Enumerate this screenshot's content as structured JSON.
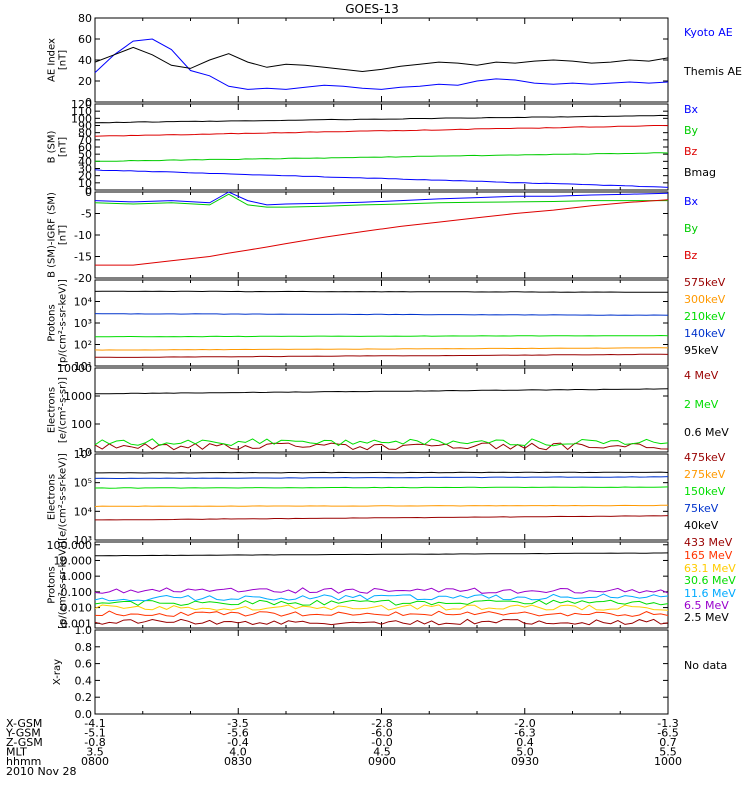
{
  "title": "GOES-13",
  "date_label": "2010 Nov 28",
  "ephemeris": {
    "rows": [
      {
        "label": "X-GSM",
        "values": [
          "-4.1",
          "-3.5",
          "-2.8",
          "-2.0",
          "-1.3"
        ]
      },
      {
        "label": "Y-GSM",
        "values": [
          "-5.1",
          "-5.6",
          "-6.0",
          "-6.3",
          "-6.5"
        ]
      },
      {
        "label": "Z-GSM",
        "values": [
          "-0.8",
          "-0.4",
          "-0.0",
          "0.4",
          "0.7"
        ]
      },
      {
        "label": "MLT",
        "values": [
          "3.5",
          "4.0",
          "4.5",
          "5.0",
          "5.5"
        ]
      },
      {
        "label": "hhmm",
        "values": [
          "0800",
          "0830",
          "0900",
          "0930",
          "1000"
        ]
      }
    ]
  },
  "chart_data": [
    {
      "type": "line",
      "ylabel": "AE Index\n[nT]",
      "ylim": [
        0,
        80
      ],
      "scale": "linear",
      "yticks": [
        0,
        20,
        40,
        60,
        80
      ],
      "ytick_labels": [
        "0",
        "20",
        "40",
        "60",
        "80"
      ],
      "x": [
        0,
        4,
        8,
        12,
        16,
        20,
        24,
        28,
        32,
        36,
        40,
        44,
        48,
        52,
        56,
        60,
        64,
        68,
        72,
        76,
        80,
        84,
        88,
        92,
        96,
        100,
        104,
        108,
        112,
        116,
        120
      ],
      "series": [
        {
          "name": "Kyoto AE",
          "color": "#0000ff",
          "values": [
            28,
            45,
            58,
            60,
            50,
            30,
            25,
            15,
            12,
            13,
            12,
            14,
            16,
            15,
            13,
            12,
            14,
            15,
            17,
            16,
            20,
            22,
            21,
            18,
            17,
            18,
            17,
            18,
            19,
            18,
            19
          ]
        },
        {
          "name": "Themis AE",
          "color": "#000000",
          "values": [
            38,
            45,
            52,
            45,
            35,
            32,
            40,
            46,
            38,
            33,
            36,
            35,
            33,
            31,
            29,
            31,
            34,
            36,
            38,
            37,
            35,
            38,
            37,
            39,
            40,
            39,
            37,
            38,
            40,
            39,
            42
          ]
        }
      ]
    },
    {
      "type": "line",
      "ylabel": "B (SM)\n[nT]",
      "ylim": [
        0,
        120
      ],
      "scale": "linear",
      "yticks": [
        0,
        10,
        20,
        30,
        40,
        50,
        60,
        70,
        80,
        90,
        100,
        110,
        120
      ],
      "ytick_labels": [
        "0",
        "10",
        "20",
        "30",
        "40",
        "50",
        "60",
        "70",
        "80",
        "90",
        "100",
        "110",
        "120"
      ],
      "x": [
        0,
        120
      ],
      "series": [
        {
          "name": "Bx",
          "color": "#0000ff",
          "values": [
            28,
            4
          ]
        },
        {
          "name": "By",
          "color": "#00cc00",
          "values": [
            40,
            52
          ]
        },
        {
          "name": "Bz",
          "color": "#dd0000",
          "values": [
            75,
            90
          ]
        },
        {
          "name": "Bmag",
          "color": "#000000",
          "values": [
            94,
            104
          ]
        }
      ]
    },
    {
      "type": "line",
      "ylabel": "B (SM)-IGRF (SM)\n[nT]",
      "ylim": [
        -20,
        0
      ],
      "scale": "linear",
      "yticks": [
        -20,
        -15,
        -10,
        -5,
        0
      ],
      "ytick_labels": [
        "-20",
        "-15",
        "-10",
        "-5",
        "0"
      ],
      "x": [
        0,
        8,
        16,
        24,
        28,
        32,
        36,
        40,
        48,
        56,
        64,
        72,
        80,
        88,
        96,
        104,
        112,
        120
      ],
      "series": [
        {
          "name": "Bx",
          "color": "#0000ff",
          "values": [
            -2,
            -2.3,
            -2,
            -2.5,
            0,
            -2,
            -3,
            -2.8,
            -2.6,
            -2.4,
            -2,
            -1.6,
            -1.3,
            -1,
            -1,
            -0.7,
            -0.5,
            -0.3
          ]
        },
        {
          "name": "By",
          "color": "#00cc00",
          "values": [
            -2.5,
            -2.8,
            -2.5,
            -3,
            -0.5,
            -3,
            -3.5,
            -3.5,
            -3.3,
            -3,
            -2.8,
            -2.5,
            -2.4,
            -2.3,
            -2.2,
            -2,
            -2,
            -2
          ]
        },
        {
          "name": "Bz",
          "color": "#dd0000",
          "values": [
            -17,
            -17,
            -16,
            -15,
            -14.2,
            -13.5,
            -12.8,
            -12,
            -10.5,
            -9.2,
            -8,
            -7,
            -6,
            -5,
            -4.2,
            -3.2,
            -2.4,
            -1.8
          ]
        }
      ]
    },
    {
      "type": "line",
      "ylabel": "Protons\n[p/(cm²-s-sr-keV)]",
      "ylim": [
        10,
        100000
      ],
      "scale": "log",
      "yticks": [
        10,
        100,
        1000,
        10000
      ],
      "ytick_labels": [
        "10¹",
        "10²",
        "10³",
        "10⁴"
      ],
      "x": [
        0,
        120
      ],
      "series": [
        {
          "name": "575keV",
          "color": "#990000",
          "values": [
            25,
            35
          ]
        },
        {
          "name": "300keV",
          "color": "#ff9900",
          "values": [
            55,
            70
          ]
        },
        {
          "name": "210keV",
          "color": "#00dd00",
          "values": [
            230,
            260
          ]
        },
        {
          "name": "140keV",
          "color": "#0033cc",
          "values": [
            2700,
            2300
          ]
        },
        {
          "name": "95keV",
          "color": "#000000",
          "values": [
            30000,
            27000
          ]
        }
      ]
    },
    {
      "type": "line",
      "ylabel": "Electrons\n[e/(cm²-s-sr)]",
      "ylim": [
        10,
        10000
      ],
      "scale": "log",
      "yticks": [
        10,
        100,
        1000,
        10000
      ],
      "ytick_labels": [
        "10",
        "100",
        "1000",
        "10000"
      ],
      "x": [
        0,
        120
      ],
      "series": [
        {
          "name": "4 MeV",
          "color": "#990000",
          "values": [
            16,
            16
          ]
        },
        {
          "name": "2 MeV",
          "color": "#00dd00",
          "values": [
            22,
            22
          ]
        },
        {
          "name": "0.6 MeV",
          "color": "#000000",
          "values": [
            1200,
            1800
          ]
        }
      ]
    },
    {
      "type": "line",
      "ylabel": "Electrons\n[e/(cm²-s-sr-keV)]",
      "ylim": [
        1000,
        1000000
      ],
      "scale": "log",
      "yticks": [
        1000,
        10000,
        100000,
        1000000
      ],
      "ytick_labels": [
        "10³",
        "10⁴",
        "10⁵",
        "10⁶"
      ],
      "x": [
        0,
        120
      ],
      "series": [
        {
          "name": "475keV",
          "color": "#990000",
          "values": [
            5000,
            7000
          ]
        },
        {
          "name": "275keV",
          "color": "#ff9900",
          "values": [
            15000,
            16000
          ]
        },
        {
          "name": "150keV",
          "color": "#00dd00",
          "values": [
            65000,
            70000
          ]
        },
        {
          "name": "75keV",
          "color": "#0033cc",
          "values": [
            140000,
            160000
          ]
        },
        {
          "name": "40keV",
          "color": "#000000",
          "values": [
            220000,
            230000
          ]
        }
      ]
    },
    {
      "type": "line",
      "ylabel": "Protons\n[p/(cm²-s-sr-keV)]",
      "ylim": [
        0.0005,
        150
      ],
      "scale": "log",
      "yticks": [
        0.001,
        0.01,
        0.1,
        1,
        10,
        100
      ],
      "ytick_labels": [
        "0.001",
        "0.010",
        "0.100",
        "1.000",
        "10.000",
        "100.000"
      ],
      "x": [
        0,
        120
      ],
      "series": [
        {
          "name": "433 MeV",
          "color": "#990000",
          "values": [
            0.0012,
            0.0012
          ]
        },
        {
          "name": "165 MeV",
          "color": "#ff3300",
          "values": [
            0.004,
            0.004
          ]
        },
        {
          "name": "63.1 MeV",
          "color": "#ffcc00",
          "values": [
            0.01,
            0.01
          ]
        },
        {
          "name": "30.6 MeV",
          "color": "#00dd00",
          "values": [
            0.02,
            0.02
          ]
        },
        {
          "name": "11.6 MeV",
          "color": "#00aaff",
          "values": [
            0.04,
            0.05
          ]
        },
        {
          "name": "6.5 MeV",
          "color": "#9900cc",
          "values": [
            0.12,
            0.12
          ]
        },
        {
          "name": "2.5 MeV",
          "color": "#000000",
          "values": [
            20,
            30
          ]
        }
      ]
    },
    {
      "type": "line",
      "ylabel": "X-ray",
      "ylim": [
        0,
        1
      ],
      "scale": "linear",
      "yticks": [
        0,
        0.2,
        0.4,
        0.6,
        0.8,
        1.0
      ],
      "ytick_labels": [
        "0.0",
        "0.2",
        "0.4",
        "0.6",
        "0.8",
        "1.0"
      ],
      "x": [],
      "series": [],
      "annotation": "No data"
    }
  ]
}
